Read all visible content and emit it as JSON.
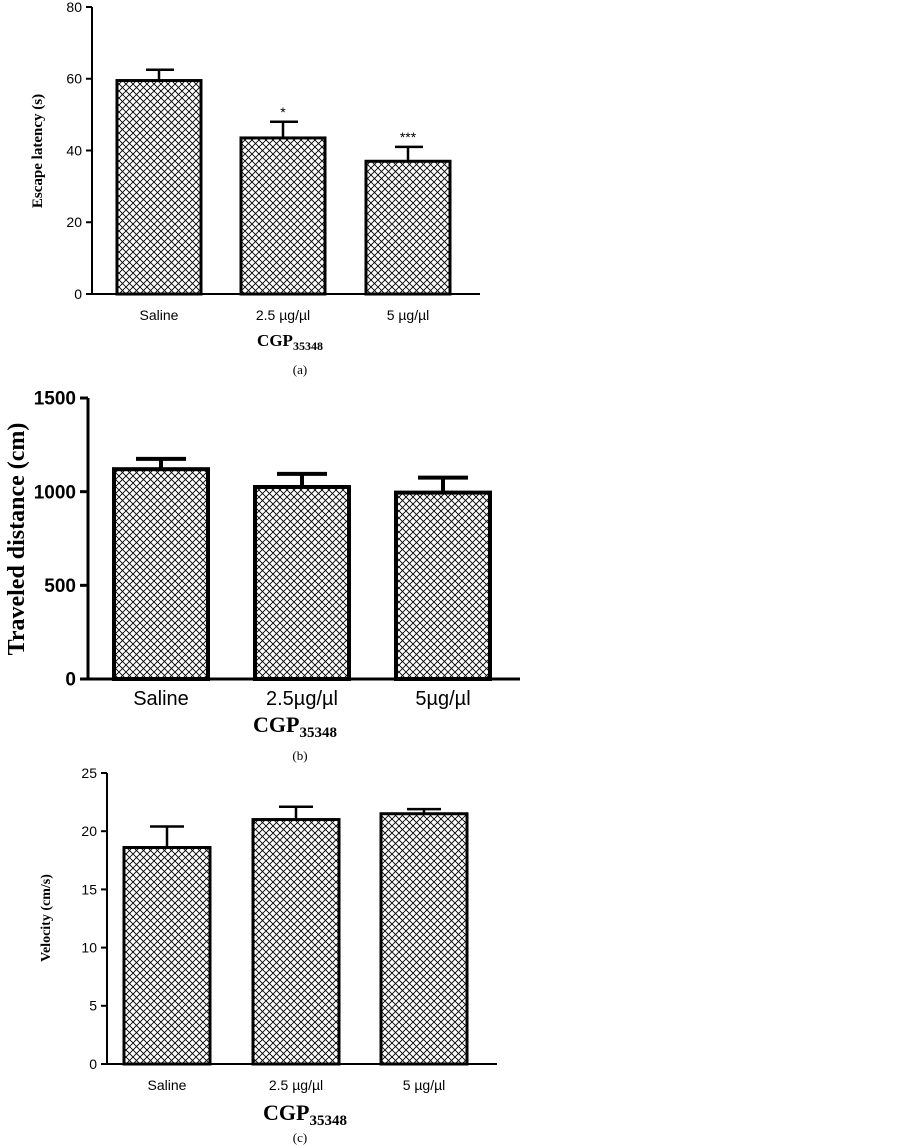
{
  "chart_data": [
    {
      "type": "bar",
      "panel_label": "(a)",
      "ylabel": "Escape latency (s)",
      "xlabel_main": "CGP",
      "xlabel_sub": "35348",
      "categories": [
        "Saline",
        "2.5 µg/µl",
        "5 µg/µl"
      ],
      "values": [
        59.5,
        43.5,
        37
      ],
      "errors": [
        3,
        4.5,
        4
      ],
      "annotations": [
        "",
        "*",
        "***"
      ],
      "ylim": [
        0,
        80
      ],
      "yticks": [
        0,
        20,
        40,
        60,
        80
      ]
    },
    {
      "type": "bar",
      "panel_label": "(b)",
      "ylabel": "Traveled distance (cm)",
      "xlabel_main": "CGP",
      "xlabel_sub": "35348",
      "categories": [
        "Saline",
        "2.5µg/µl",
        "5µg/µl"
      ],
      "values": [
        1120,
        1025,
        995
      ],
      "errors": [
        55,
        70,
        80
      ],
      "annotations": [
        "",
        "",
        ""
      ],
      "ylim": [
        0,
        1500
      ],
      "yticks": [
        0,
        500,
        1000,
        1500
      ]
    },
    {
      "type": "bar",
      "panel_label": "(c)",
      "ylabel": "Velocity (cm/s)",
      "xlabel_main": "CGP",
      "xlabel_sub": "35348",
      "categories": [
        "Saline",
        "2.5 µg/µl",
        "5 µg/µl"
      ],
      "values": [
        18.6,
        21,
        21.5
      ],
      "errors": [
        1.8,
        1.1,
        0.4
      ],
      "annotations": [
        "",
        "",
        ""
      ],
      "ylim": [
        0,
        25
      ],
      "yticks": [
        0,
        5,
        10,
        15,
        20,
        25
      ]
    }
  ]
}
